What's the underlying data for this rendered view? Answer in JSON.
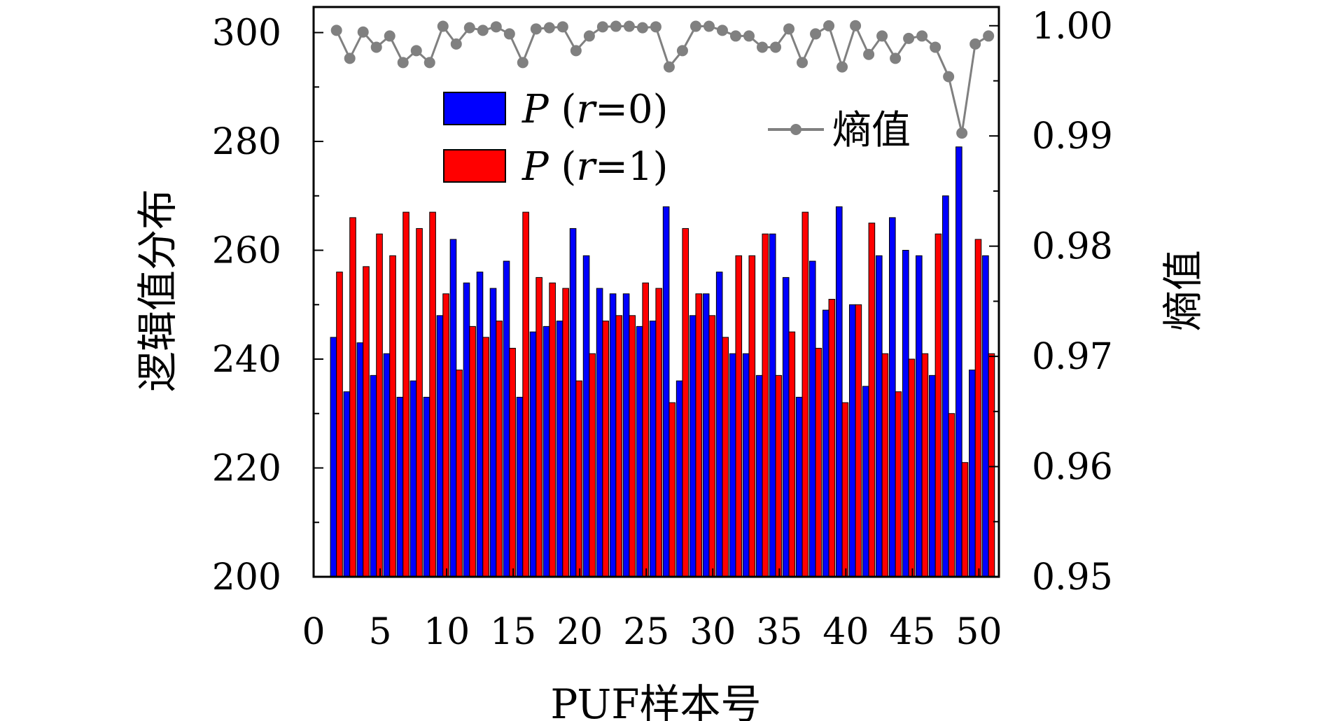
{
  "chart_data": {
    "type": "bar",
    "xlabel": "PUF样本号",
    "ylabel_left": "逻辑值分布",
    "ylabel_right": "熵值",
    "xlim": [
      0,
      51.5
    ],
    "ylim_left": [
      200,
      304.7
    ],
    "ylim_right": [
      0.95,
      1.0017
    ],
    "x_ticks": [
      "0",
      "5",
      "10",
      "15",
      "20",
      "25",
      "30",
      "35",
      "40",
      "45",
      "50"
    ],
    "y_ticks_left": [
      "200",
      "220",
      "240",
      "260",
      "280",
      "300"
    ],
    "y_ticks_right": [
      "0.95",
      "0.96",
      "0.97",
      "0.98",
      "0.99",
      "1.00"
    ],
    "grid": false,
    "legend_placement": "top-center",
    "x": [
      1,
      2,
      3,
      4,
      5,
      6,
      7,
      8,
      9,
      10,
      11,
      12,
      13,
      14,
      15,
      16,
      17,
      18,
      19,
      20,
      21,
      22,
      23,
      24,
      25,
      26,
      27,
      28,
      29,
      30,
      31,
      32,
      33,
      34,
      35,
      36,
      37,
      38,
      39,
      40,
      41,
      42,
      43,
      44,
      45,
      46,
      47,
      48,
      49,
      50
    ],
    "series": [
      {
        "name": "P (r=0)",
        "legend_italic": "P",
        "legend_rest": " (",
        "legend_var": "r",
        "legend_tail": "=0)",
        "axis": "left",
        "color": "#0000ff",
        "values": [
          244,
          234,
          243,
          237,
          241,
          233,
          236,
          233,
          248,
          262,
          254,
          256,
          253,
          258,
          233,
          245,
          246,
          247,
          264,
          259,
          253,
          252,
          252,
          246,
          247,
          268,
          236,
          248,
          252,
          256,
          241,
          241,
          237,
          263,
          255,
          233,
          258,
          249,
          268,
          250,
          235,
          259,
          266,
          260,
          259,
          237,
          270,
          279,
          238,
          259
        ]
      },
      {
        "name": "P (r=1)",
        "legend_italic": "P",
        "legend_rest": " (",
        "legend_var": "r",
        "legend_tail": "=1)",
        "axis": "left",
        "color": "#ff0000",
        "values": [
          256,
          266,
          257,
          263,
          259,
          267,
          264,
          267,
          252,
          238,
          246,
          244,
          247,
          242,
          267,
          255,
          254,
          253,
          236,
          241,
          247,
          248,
          248,
          254,
          253,
          232,
          264,
          252,
          248,
          244,
          259,
          259,
          263,
          237,
          245,
          267,
          242,
          251,
          232,
          250,
          265,
          241,
          234,
          240,
          241,
          263,
          230,
          221,
          262,
          241
        ]
      },
      {
        "name": "熵值",
        "type": "line",
        "axis": "right",
        "color": "#808080",
        "values": [
          0.99958,
          0.99704,
          0.99943,
          0.99805,
          0.99907,
          0.99666,
          0.99774,
          0.99666,
          0.99995,
          0.99834,
          0.99982,
          0.99958,
          0.9999,
          0.99926,
          0.99666,
          0.99971,
          0.99982,
          0.9999,
          0.99774,
          0.99907,
          0.9999,
          0.99995,
          0.99995,
          0.99982,
          0.9999,
          0.99626,
          0.99774,
          0.99995,
          0.99995,
          0.99958,
          0.99907,
          0.99907,
          0.99805,
          0.99805,
          0.99971,
          0.99666,
          0.99926,
          0.99999,
          0.99626,
          1.0,
          0.9974,
          0.99907,
          0.99704,
          0.99885,
          0.99907,
          0.99805,
          0.99538,
          0.99026,
          0.99834,
          0.99907
        ]
      }
    ]
  }
}
